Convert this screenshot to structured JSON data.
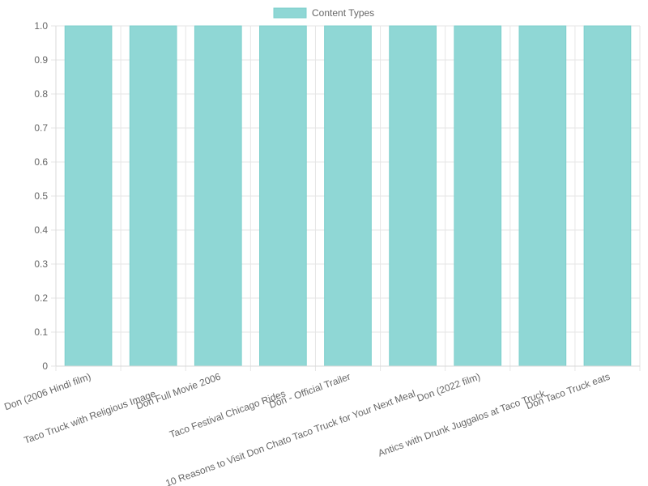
{
  "chart_data": {
    "type": "bar",
    "categories": [
      "Don (2006 Hindi film)",
      "Taco Truck with Religious Image",
      "Don Full Movie 2006",
      "Taco Festival Chicago Rides",
      "Don - Official Trailer",
      "10 Reasons to Visit Don Chato Taco Truck for Your Next Meal",
      "Don (2022 film)",
      "Antics with Drunk Juggalos at Taco Truck",
      "Don Taco Truck eats"
    ],
    "series": [
      {
        "name": "Content Types",
        "values": [
          1,
          1,
          1,
          1,
          1,
          1,
          1,
          1,
          1
        ]
      }
    ],
    "ylim": [
      0,
      1
    ],
    "yticks": [
      "0",
      "0.1",
      "0.2",
      "0.3",
      "0.4",
      "0.5",
      "0.6",
      "0.7",
      "0.8",
      "0.9",
      "1.0"
    ],
    "grid": true,
    "legend": "top-center",
    "colors": {
      "bar_fill": "#8fd7d5",
      "bar_stroke": "#7ccfcc",
      "grid": "#e6e6e6",
      "text": "#666666"
    }
  }
}
